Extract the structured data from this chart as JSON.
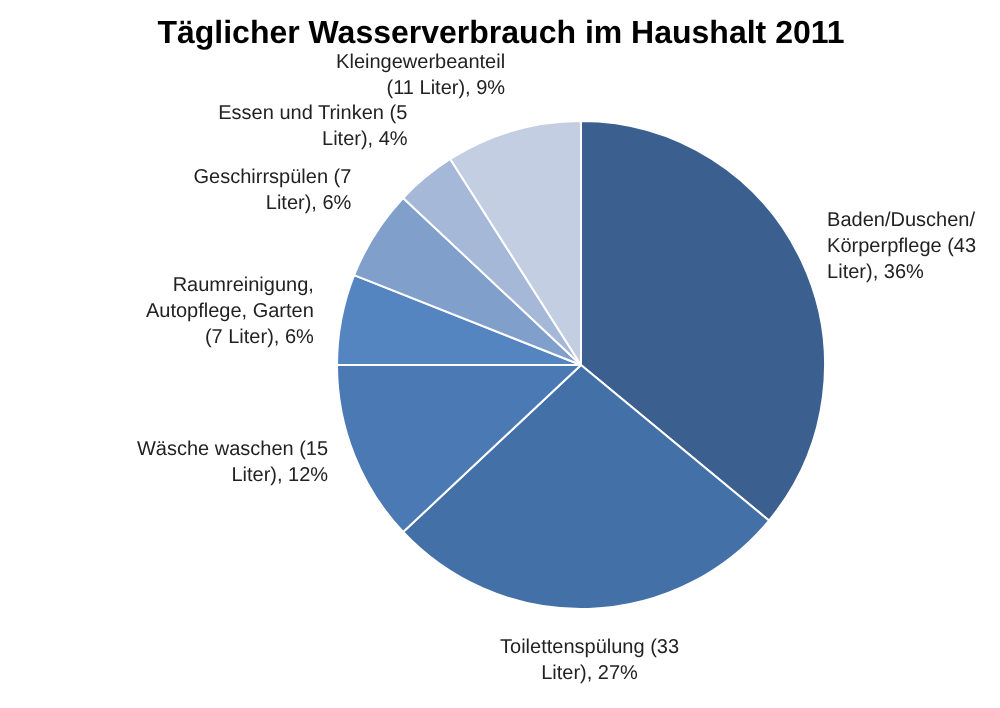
{
  "chart_data": {
    "type": "pie",
    "title": "Täglicher Wasserverbrauch im Haushalt 2011",
    "categories": [
      "Baden/Duschen/Körperpflege (43 Liter)",
      "Toilettenspülung (33 Liter)",
      "Wäsche waschen (15 Liter)",
      "Raumreinigung, Autopflege, Garten (7 Liter)",
      "Geschirrspülen (7 Liter)",
      "Essen und Trinken (5 Liter)",
      "Kleingewerbeanteil (11 Liter)"
    ],
    "values": [
      36,
      27,
      12,
      6,
      6,
      4,
      9
    ],
    "value_labels": [
      "36%",
      "27%",
      "12%",
      "6%",
      "6%",
      "4%",
      "9%"
    ],
    "colors": [
      "#3b5f8f",
      "#4470a8",
      "#4a79b4",
      "#5585c0",
      "#819fcb",
      "#a6b8d8",
      "#c3cee3"
    ]
  }
}
